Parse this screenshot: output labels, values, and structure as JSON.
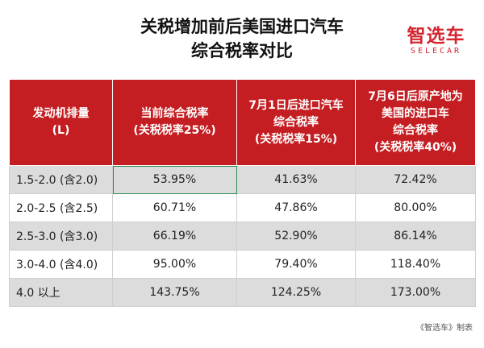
{
  "title": {
    "line1": "关税增加前后美国进口汽车",
    "line2": "综合税率对比"
  },
  "logo": {
    "cn": "智选车",
    "en": "SELECAR"
  },
  "table": {
    "headers": [
      [
        "发动机排量",
        "(L)"
      ],
      [
        "当前综合税率",
        "(关税税率25%)"
      ],
      [
        "7月1日后进口汽车",
        "综合税率",
        "(关税税率15%)"
      ],
      [
        "7月6日后原产地为",
        "美国的进口车",
        "综合税率",
        "(关税税率40%)"
      ]
    ],
    "rows": [
      [
        "1.5-2.0 (含2.0)",
        "53.95%",
        "41.63%",
        "72.42%"
      ],
      [
        "2.0-2.5 (含2.5)",
        "60.71%",
        "47.86%",
        "80.00%"
      ],
      [
        "2.5-3.0 (含3.0)",
        "66.19%",
        "52.90%",
        "86.14%"
      ],
      [
        "3.0-4.0 (含4.0)",
        "95.00%",
        "79.40%",
        "118.40%"
      ],
      [
        "4.0 以上",
        "143.75%",
        "124.25%",
        "173.00%"
      ]
    ]
  },
  "footer": "《智选车》制表",
  "colors": {
    "header_red": "#c41e22",
    "brand_red": "#d4252f",
    "row_shade": "#dcdcdc"
  }
}
